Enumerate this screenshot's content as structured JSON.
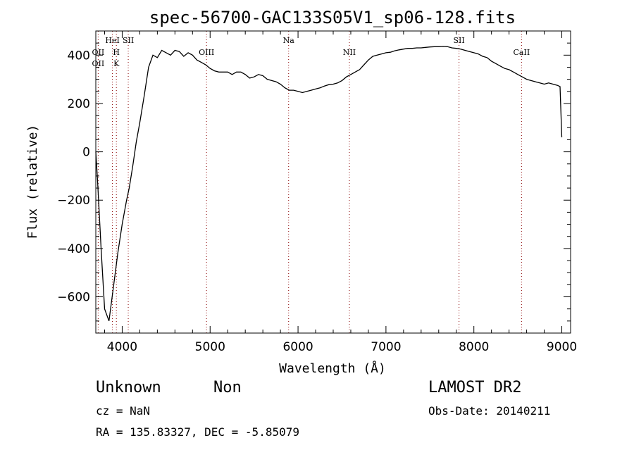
{
  "chart_data": {
    "type": "line",
    "title": "spec-56700-GAC133S05V1_sp06-128.fits",
    "xlabel": "Wavelength (Å)",
    "ylabel": "Flux (relative)",
    "xlim": [
      3700,
      9100
    ],
    "ylim": [
      -750,
      500
    ],
    "x_ticks": [
      4000,
      5000,
      6000,
      7000,
      8000,
      9000
    ],
    "y_ticks": [
      -600,
      -400,
      -200,
      0,
      200,
      400
    ],
    "x_tick_labels": [
      "4000",
      "5000",
      "6000",
      "7000",
      "8000",
      "9000"
    ],
    "y_tick_labels": [
      "−600",
      "−400",
      "−200",
      "0",
      "200",
      "400"
    ],
    "grid": false,
    "series": [
      {
        "x": [
          3700,
          3720,
          3760,
          3800,
          3850,
          3900,
          3950,
          4000,
          4050,
          4080,
          4120,
          4160,
          4200,
          4250,
          4300,
          4350,
          4400,
          4450,
          4500,
          4550,
          4600,
          4650,
          4700,
          4750,
          4800,
          4850,
          4900,
          4950,
          5000,
          5050,
          5100,
          5150,
          5200,
          5250,
          5300,
          5350,
          5400,
          5450,
          5500,
          5550,
          5600,
          5650,
          5700,
          5750,
          5800,
          5850,
          5900,
          5950,
          6000,
          6050,
          6100,
          6150,
          6200,
          6250,
          6300,
          6350,
          6400,
          6450,
          6500,
          6550,
          6600,
          6650,
          6700,
          6750,
          6800,
          6850,
          6900,
          6950,
          7000,
          7050,
          7100,
          7150,
          7200,
          7250,
          7300,
          7350,
          7400,
          7450,
          7500,
          7550,
          7600,
          7650,
          7700,
          7750,
          7800,
          7850,
          7900,
          7950,
          8000,
          8050,
          8100,
          8150,
          8200,
          8250,
          8300,
          8350,
          8400,
          8450,
          8500,
          8550,
          8600,
          8650,
          8700,
          8750,
          8800,
          8850,
          8900,
          8950,
          8980,
          9000
        ],
        "y": [
          0,
          -120,
          -400,
          -650,
          -700,
          -560,
          -420,
          -300,
          -200,
          -150,
          -60,
          40,
          120,
          230,
          350,
          400,
          390,
          420,
          410,
          400,
          420,
          415,
          395,
          410,
          400,
          380,
          370,
          360,
          345,
          335,
          330,
          330,
          330,
          320,
          330,
          330,
          320,
          305,
          310,
          320,
          315,
          300,
          295,
          290,
          280,
          265,
          255,
          255,
          250,
          245,
          250,
          255,
          260,
          265,
          272,
          278,
          280,
          285,
          295,
          310,
          320,
          330,
          340,
          360,
          380,
          395,
          400,
          405,
          410,
          412,
          418,
          422,
          425,
          428,
          428,
          430,
          430,
          432,
          434,
          435,
          435,
          436,
          435,
          430,
          428,
          425,
          420,
          415,
          410,
          405,
          395,
          390,
          375,
          365,
          355,
          345,
          340,
          330,
          320,
          310,
          300,
          295,
          290,
          285,
          280,
          285,
          280,
          275,
          270,
          60
        ]
      }
    ],
    "emission_lines": [
      {
        "x": 3727,
        "labels": [
          "OII",
          "OII"
        ]
      },
      {
        "x": 3889,
        "labels": [
          "HeI"
        ]
      },
      {
        "x": 3934,
        "labels": [
          "H",
          "K"
        ]
      },
      {
        "x": 4069,
        "labels": [
          "SII"
        ]
      },
      {
        "x": 4959,
        "labels": [
          "OIII"
        ]
      },
      {
        "x": 5893,
        "labels": [
          "Na"
        ]
      },
      {
        "x": 6584,
        "labels": [
          "NII"
        ]
      },
      {
        "x": 7831,
        "labels": [
          "SII"
        ]
      },
      {
        "x": 8542,
        "labels": [
          "CaII"
        ]
      }
    ]
  },
  "info": {
    "object_class": "Unknown",
    "subclass": "Non",
    "survey": "LAMOST DR2",
    "cz": "cz = NaN",
    "obs_date": "Obs-Date: 20140211",
    "coords": "RA = 135.83327, DEC =  -5.85079"
  }
}
